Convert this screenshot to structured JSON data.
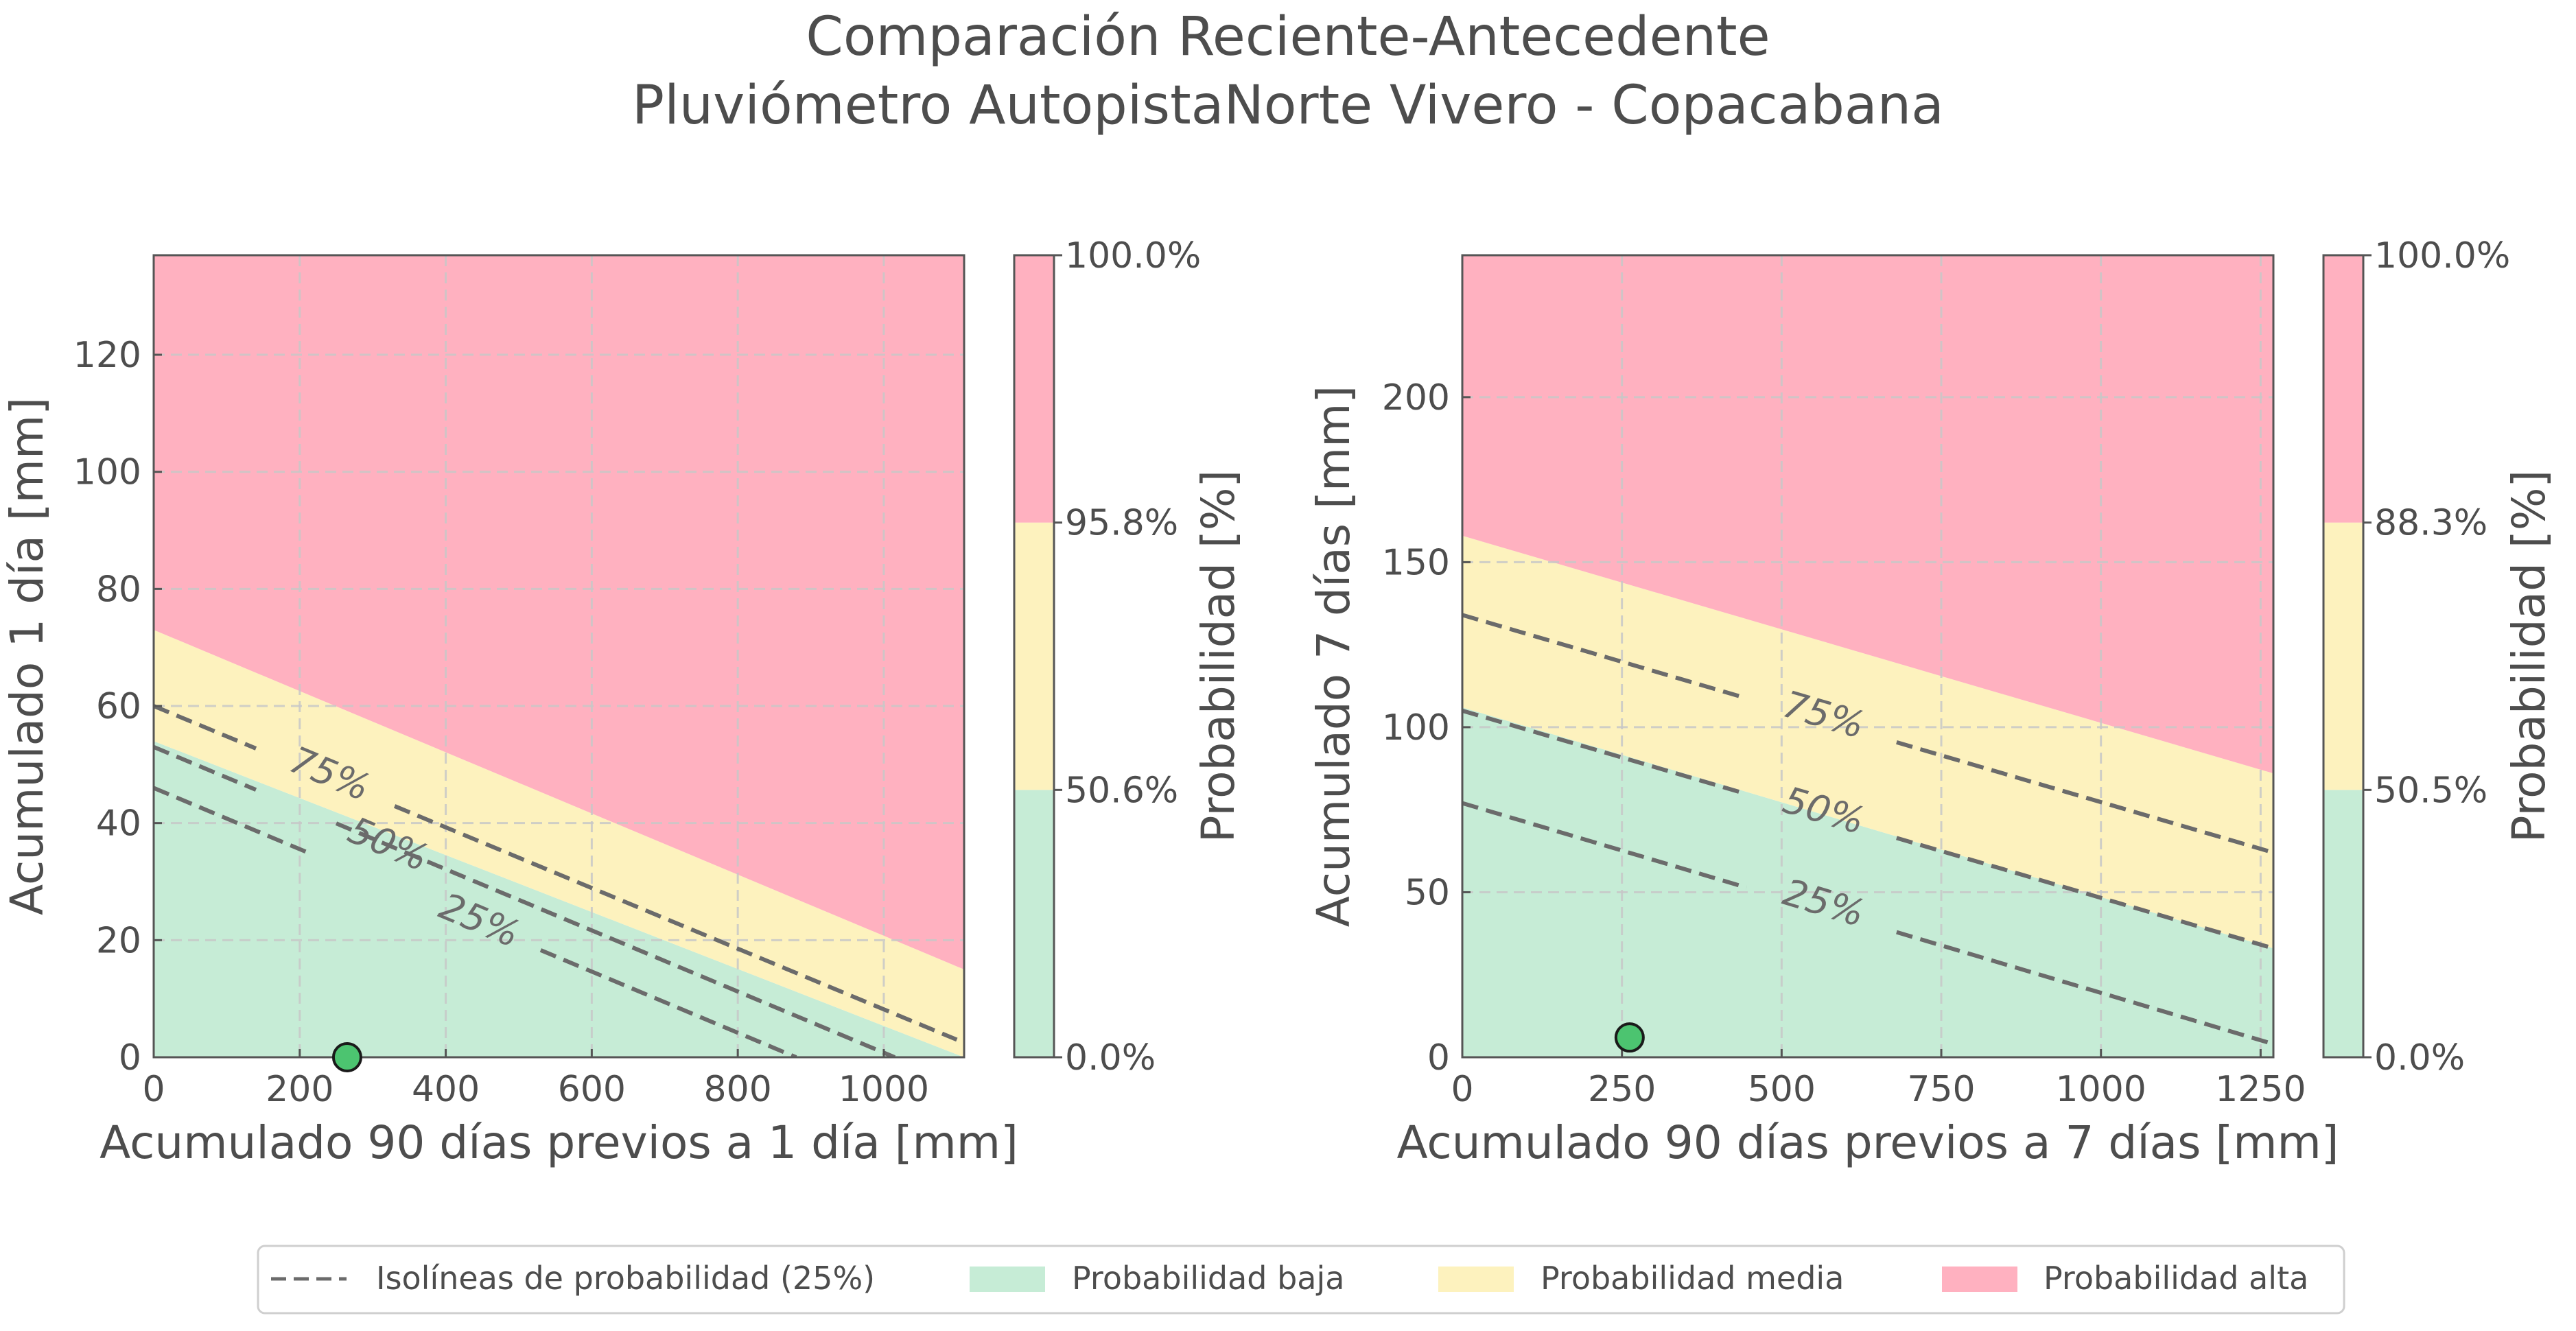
{
  "figure": {
    "title_line1": "Comparación Reciente-Antecedente",
    "title_line2": "Pluviómetro AutopistaNorte Vivero - Copacabana"
  },
  "colors": {
    "low": "#c6ecd6",
    "medium": "#fdf2be",
    "high": "#ffb1c0",
    "isoline": "#6b6b6b",
    "point_fill": "#4cc470",
    "grid": "#c8c8c8",
    "text": "#4d4d4d"
  },
  "legend": {
    "items": [
      {
        "label": "Isolíneas de probabilidad (25%)",
        "symbol": "dashed-line"
      },
      {
        "label": "Probabilidad baja",
        "symbol": "patch-low"
      },
      {
        "label": "Probabilidad media",
        "symbol": "patch-medium"
      },
      {
        "label": "Probabilidad alta",
        "symbol": "patch-high"
      }
    ],
    "placement": "bottom-center"
  },
  "chart_data": [
    {
      "type": "contour",
      "xlabel": "Acumulado 90 días previos a 1 día [mm]",
      "ylabel": "Acumulado 1 día [mm]",
      "xlim": [
        0,
        1110
      ],
      "ylim": [
        0,
        137
      ],
      "xticks": [
        0,
        200,
        400,
        600,
        800,
        1000
      ],
      "yticks": [
        0,
        20,
        40,
        60,
        80,
        100,
        120
      ],
      "grid": true,
      "regions": [
        {
          "name": "Probabilidad baja",
          "polygon": [
            [
              0,
              0
            ],
            [
              1110,
              0
            ],
            [
              1110,
              0
            ],
            [
              0,
              54
            ]
          ]
        },
        {
          "name": "Probabilidad media",
          "polygon": [
            [
              0,
              54
            ],
            [
              1110,
              0
            ],
            [
              1110,
              15
            ],
            [
              0,
              73
            ]
          ]
        },
        {
          "name": "Probabilidad alta",
          "polygon": [
            [
              0,
              73
            ],
            [
              1110,
              15
            ],
            [
              1110,
              137
            ],
            [
              0,
              137
            ]
          ]
        }
      ],
      "isolines": [
        {
          "label": "25%",
          "from": [
            0,
            46
          ],
          "to": [
            880,
            0
          ],
          "label_at": [
            445,
            23
          ],
          "gap": [
            210,
            530
          ]
        },
        {
          "label": "50%",
          "from": [
            0,
            53
          ],
          "to": [
            1015,
            0
          ],
          "label_at": [
            320,
            36
          ],
          "gap": [
            140,
            250
          ]
        },
        {
          "label": "75%",
          "from": [
            0,
            60
          ],
          "to": [
            1100,
            3
          ],
          "label_at": [
            240,
            48
          ],
          "gap": [
            140,
            330
          ]
        }
      ],
      "point": {
        "x": 265,
        "y": 0
      },
      "colorbar": {
        "label": "Probabilidad [%]",
        "ticks": [
          "0.0%",
          "50.6%",
          "95.8%",
          "100.0%"
        ],
        "bands": [
          {
            "from": 0,
            "to": 50.6,
            "name": "Probabilidad baja"
          },
          {
            "from": 50.6,
            "to": 95.8,
            "name": "Probabilidad media"
          },
          {
            "from": 95.8,
            "to": 100,
            "name": "Probabilidad alta"
          }
        ]
      }
    },
    {
      "type": "contour",
      "xlabel": "Acumulado 90 días previos a 7 días [mm]",
      "ylabel": "Acumulado 7 días [mm]",
      "xlim": [
        0,
        1270
      ],
      "ylim": [
        0,
        243
      ],
      "xticks": [
        0,
        250,
        500,
        750,
        1000,
        1250
      ],
      "yticks": [
        0,
        50,
        100,
        150,
        200
      ],
      "grid": true,
      "regions": [
        {
          "name": "Probabilidad baja",
          "polygon": [
            [
              0,
              0
            ],
            [
              1270,
              0
            ],
            [
              1270,
              33
            ],
            [
              0,
              106
            ]
          ]
        },
        {
          "name": "Probabilidad media",
          "polygon": [
            [
              0,
              106
            ],
            [
              1270,
              33
            ],
            [
              1270,
              86
            ],
            [
              0,
              158
            ]
          ]
        },
        {
          "name": "Probabilidad alta",
          "polygon": [
            [
              0,
              158
            ],
            [
              1270,
              86
            ],
            [
              1270,
              243
            ],
            [
              0,
              243
            ]
          ]
        }
      ],
      "isolines": [
        {
          "label": "25%",
          "from": [
            0,
            77
          ],
          "to": [
            1270,
            4
          ],
          "label_at": [
            565,
            46
          ],
          "gap": [
            445,
            680
          ]
        },
        {
          "label": "50%",
          "from": [
            0,
            105
          ],
          "to": [
            1270,
            33
          ],
          "label_at": [
            565,
            74
          ],
          "gap": [
            445,
            680
          ]
        },
        {
          "label": "75%",
          "from": [
            0,
            134
          ],
          "to": [
            1270,
            62
          ],
          "label_at": [
            565,
            103
          ],
          "gap": [
            445,
            680
          ]
        }
      ],
      "point": {
        "x": 262,
        "y": 6
      },
      "colorbar": {
        "label": "Probabilidad [%]",
        "ticks": [
          "0.0%",
          "50.5%",
          "88.3%",
          "100.0%"
        ],
        "bands": [
          {
            "from": 0,
            "to": 50.5,
            "name": "Probabilidad baja"
          },
          {
            "from": 50.5,
            "to": 88.3,
            "name": "Probabilidad media"
          },
          {
            "from": 88.3,
            "to": 100,
            "name": "Probabilidad alta"
          }
        ]
      }
    }
  ]
}
